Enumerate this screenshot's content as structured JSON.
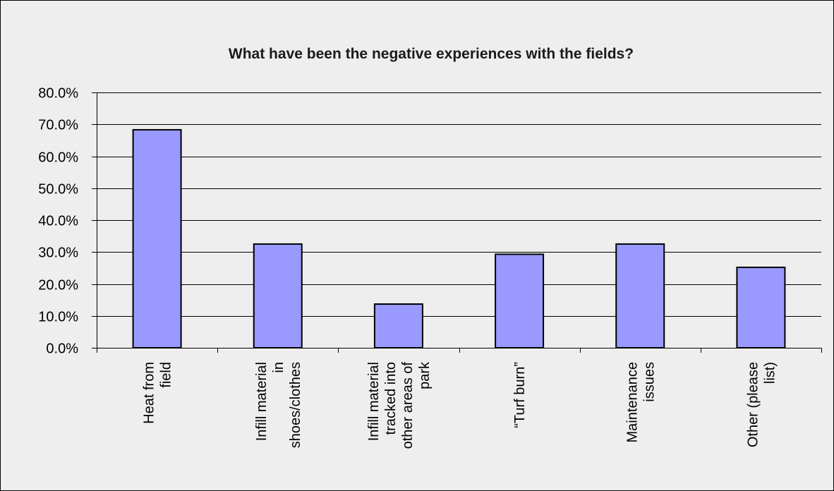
{
  "chart_data": {
    "type": "bar",
    "title": "What have been the negative experiences with the fields?",
    "xlabel": "",
    "ylabel": "",
    "categories": [
      [
        "Heat from",
        "field"
      ],
      [
        "Infill material",
        "in",
        "shoes/clothes"
      ],
      [
        "Infill material",
        "tracked into",
        "other areas of",
        "park"
      ],
      [
        "“Turf burn”"
      ],
      [
        "Maintenance",
        "issues"
      ],
      [
        "Other (please",
        "list)"
      ]
    ],
    "values": [
      68.3,
      32.5,
      13.7,
      29.3,
      32.5,
      25.2
    ],
    "ylim": [
      0,
      80
    ],
    "yticks": [
      0,
      10,
      20,
      30,
      40,
      50,
      60,
      70,
      80
    ],
    "ytick_labels": [
      "0.0%",
      "10.0%",
      "20.0%",
      "30.0%",
      "40.0%",
      "50.0%",
      "60.0%",
      "70.0%",
      "80.0%"
    ],
    "grid": true,
    "legend": "none",
    "colors": {
      "bar_fill": "#9999ff",
      "bar_stroke": "#000000",
      "background": "#eeeeee",
      "gridline": "#000000"
    }
  }
}
